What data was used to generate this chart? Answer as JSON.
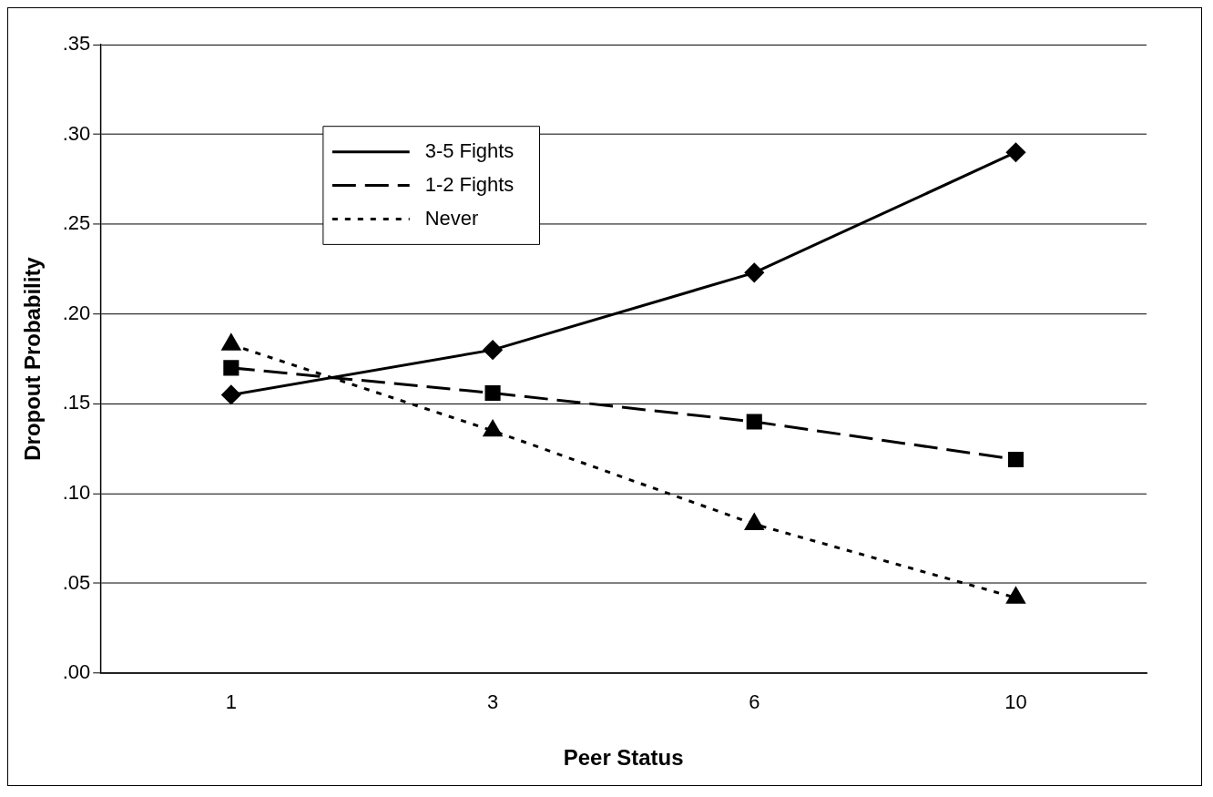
{
  "chart_data": {
    "type": "line",
    "xlabel": "Peer Status",
    "ylabel": "Dropout Probability",
    "categories": [
      "1",
      "3",
      "6",
      "10"
    ],
    "series": [
      {
        "name": "3-5 Fights",
        "color": "#000000",
        "marker": "diamond",
        "line_style": "solid",
        "values": [
          0.155,
          0.18,
          0.223,
          0.29
        ]
      },
      {
        "name": "1-2 Fights",
        "color": "#000000",
        "marker": "square",
        "line_style": "dashed",
        "values": [
          0.17,
          0.156,
          0.14,
          0.119
        ]
      },
      {
        "name": "Never",
        "color": "#000000",
        "marker": "triangle",
        "line_style": "dotted",
        "values": [
          0.183,
          0.135,
          0.083,
          0.042
        ]
      }
    ],
    "ylim": [
      0,
      0.35
    ],
    "yticks": [
      {
        "value": 0,
        "label": ".00"
      },
      {
        "value": 0.05,
        "label": ".05"
      },
      {
        "value": 0.1,
        "label": ".10"
      },
      {
        "value": 0.15,
        "label": ".15"
      },
      {
        "value": 0.2,
        "label": ".20"
      },
      {
        "value": 0.25,
        "label": ".25"
      },
      {
        "value": 0.3,
        "label": ".30"
      },
      {
        "value": 0.35,
        "label": ".35"
      }
    ],
    "grid": "y",
    "legend": "top left"
  }
}
